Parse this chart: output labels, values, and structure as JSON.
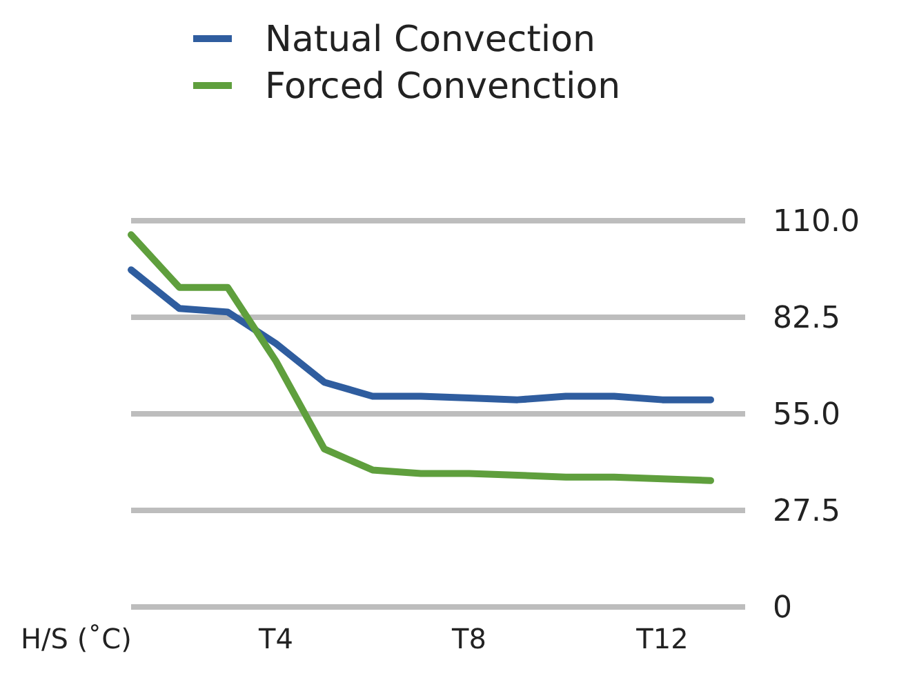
{
  "chart_data": {
    "type": "line",
    "ylabel": "H/S (˚C)",
    "categories": [
      null,
      null,
      null,
      "T4",
      null,
      null,
      null,
      "T8",
      null,
      null,
      null,
      "T12",
      null
    ],
    "series": [
      {
        "name": "Natual Convection",
        "color": "#2f5d9f",
        "values": [
          96,
          85,
          84,
          75,
          64,
          60,
          60,
          59.5,
          59,
          60,
          60,
          59,
          59
        ]
      },
      {
        "name": "Forced Convenction",
        "color": "#5f9f3d",
        "values": [
          106,
          91,
          91,
          70,
          45,
          39,
          38,
          38,
          37.5,
          37,
          37,
          36.5,
          36
        ]
      }
    ],
    "ylim": [
      0,
      110
    ],
    "yticks": [
      0,
      27.5,
      {
        "value": 55,
        "label": "55.0"
      },
      82.5,
      {
        "value": 110,
        "label": "110.0"
      }
    ],
    "grid": "y",
    "legend": "top",
    "marker": "none",
    "line_style": "solid"
  }
}
